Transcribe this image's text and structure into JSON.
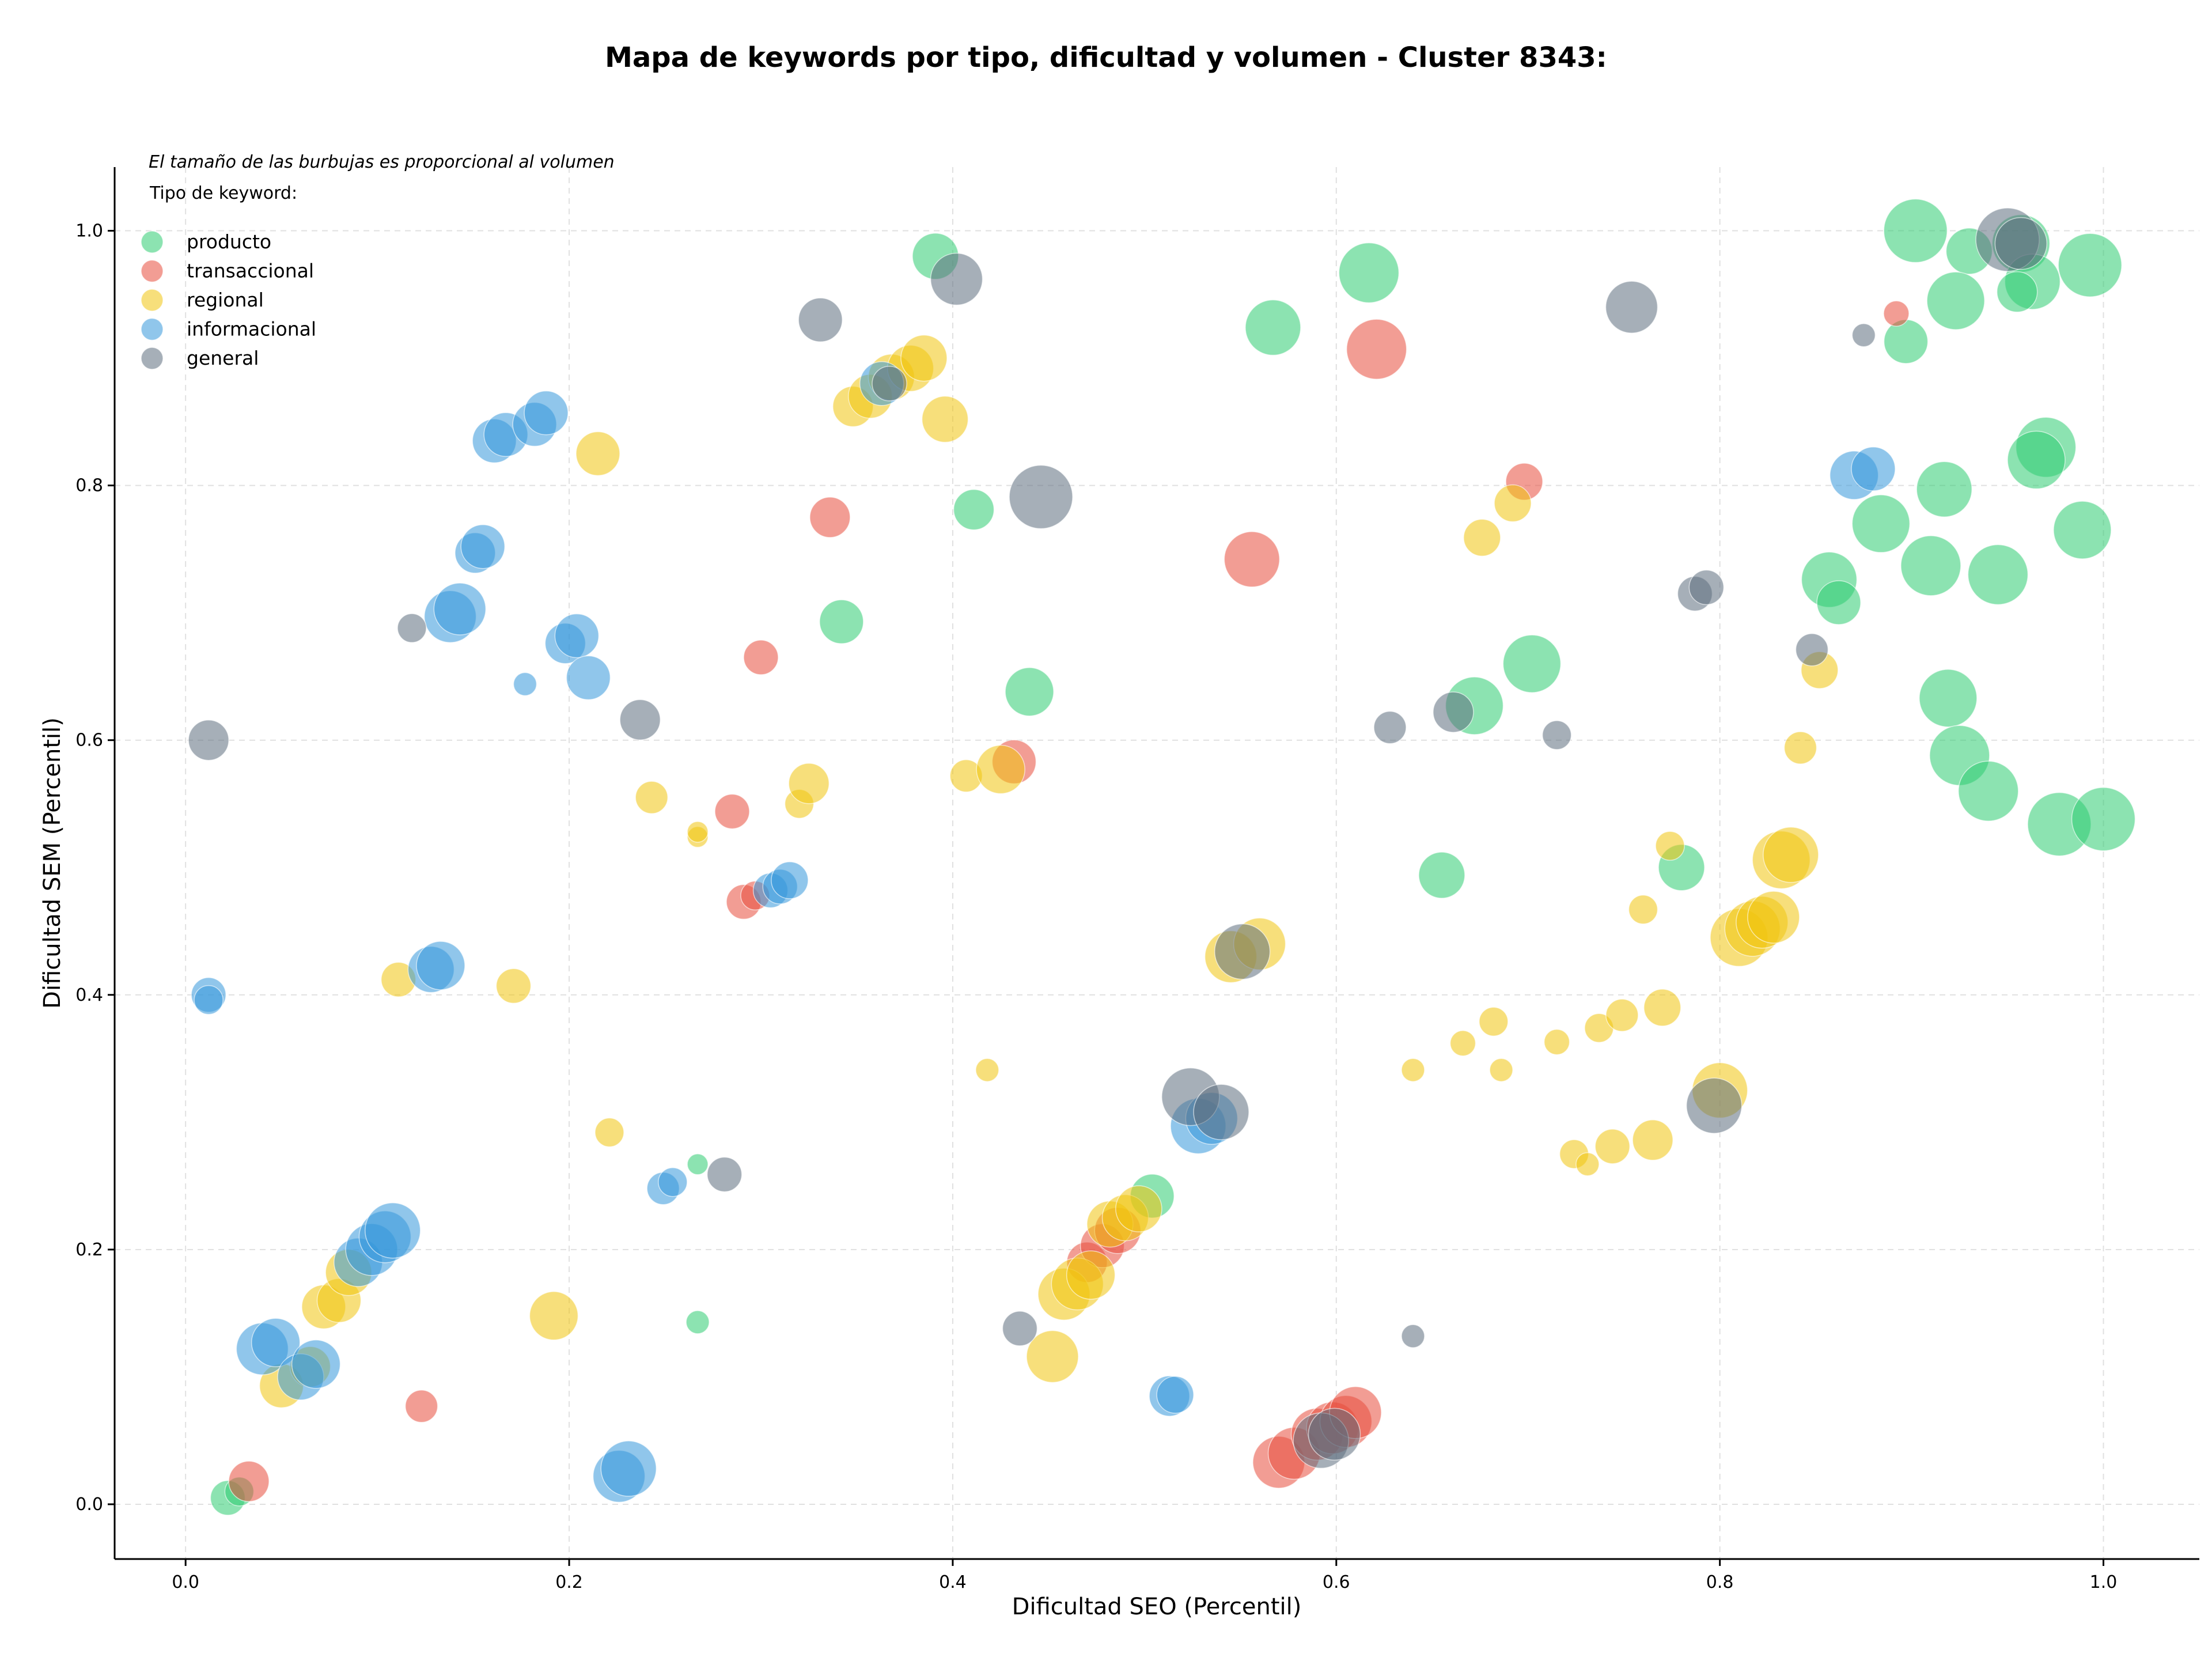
{
  "chart_data": {
    "type": "scatter",
    "title": "Mapa de keywords por tipo, dificultad y volumen - Cluster 8343:",
    "xlabel": "Dificultad SEO (Percentil)",
    "ylabel": "Dificultad SEM (Percentil)",
    "xlim": [
      -0.037,
      1.05
    ],
    "ylim": [
      -0.043,
      1.05
    ],
    "xticks": [
      "0.0",
      "0.2",
      "0.4",
      "0.6",
      "0.8",
      "1.0"
    ],
    "yticks": [
      "0.0",
      "0.2",
      "0.4",
      "0.6",
      "0.8",
      "1.0"
    ],
    "grid": true,
    "annotation": "El tamaño de las burbujas es proporcional al volumen",
    "legend_title": "Tipo de keyword:",
    "legend_position": "top-left",
    "series": [
      {
        "name": "producto",
        "color": "#2ecc71",
        "points": [
          [
            0.902,
            1.0,
            55
          ],
          [
            0.93,
            0.984,
            40
          ],
          [
            0.957,
            0.99,
            50
          ],
          [
            0.993,
            0.973,
            55
          ],
          [
            0.963,
            0.96,
            48
          ],
          [
            0.955,
            0.952,
            35
          ],
          [
            0.923,
            0.945,
            50
          ],
          [
            0.897,
            0.913,
            38
          ],
          [
            0.97,
            0.83,
            52
          ],
          [
            0.965,
            0.82,
            50
          ],
          [
            0.917,
            0.797,
            48
          ],
          [
            0.989,
            0.765,
            50
          ],
          [
            0.884,
            0.77,
            50
          ],
          [
            0.91,
            0.737,
            52
          ],
          [
            0.945,
            0.73,
            52
          ],
          [
            0.857,
            0.726,
            48
          ],
          [
            0.862,
            0.708,
            38
          ],
          [
            0.919,
            0.633,
            50
          ],
          [
            0.925,
            0.588,
            52
          ],
          [
            0.94,
            0.56,
            52
          ],
          [
            0.977,
            0.534,
            55
          ],
          [
            1.0,
            0.538,
            55
          ],
          [
            0.78,
            0.5,
            40
          ],
          [
            0.655,
            0.494,
            40
          ],
          [
            0.672,
            0.627,
            50
          ],
          [
            0.702,
            0.66,
            50
          ],
          [
            0.617,
            0.967,
            52
          ],
          [
            0.567,
            0.924,
            48
          ],
          [
            0.391,
            0.98,
            40
          ],
          [
            0.411,
            0.781,
            35
          ],
          [
            0.44,
            0.638,
            42
          ],
          [
            0.342,
            0.693,
            38
          ],
          [
            0.504,
            0.242,
            38
          ],
          [
            0.267,
            0.267,
            18
          ],
          [
            0.267,
            0.143,
            20
          ],
          [
            0.022,
            0.005,
            30
          ],
          [
            0.028,
            0.01,
            25
          ]
        ]
      },
      {
        "name": "transaccional",
        "color": "#e74c3c",
        "points": [
          [
            0.033,
            0.018,
            35
          ],
          [
            0.123,
            0.077,
            28
          ],
          [
            0.291,
            0.473,
            30
          ],
          [
            0.297,
            0.478,
            25
          ],
          [
            0.285,
            0.544,
            30
          ],
          [
            0.3,
            0.665,
            30
          ],
          [
            0.336,
            0.775,
            35
          ],
          [
            0.432,
            0.583,
            38
          ],
          [
            0.556,
            0.742,
            48
          ],
          [
            0.621,
            0.907,
            52
          ],
          [
            0.698,
            0.803,
            32
          ],
          [
            0.892,
            0.935,
            22
          ],
          [
            0.47,
            0.19,
            35
          ],
          [
            0.478,
            0.203,
            38
          ],
          [
            0.486,
            0.215,
            40
          ],
          [
            0.57,
            0.033,
            45
          ],
          [
            0.578,
            0.04,
            45
          ],
          [
            0.59,
            0.055,
            45
          ],
          [
            0.598,
            0.06,
            45
          ],
          [
            0.605,
            0.065,
            45
          ],
          [
            0.61,
            0.072,
            45
          ]
        ]
      },
      {
        "name": "regional",
        "color": "#f1c40f",
        "points": [
          [
            0.05,
            0.093,
            38
          ],
          [
            0.065,
            0.108,
            35
          ],
          [
            0.072,
            0.155,
            38
          ],
          [
            0.08,
            0.16,
            38
          ],
          [
            0.085,
            0.182,
            40
          ],
          [
            0.192,
            0.148,
            42
          ],
          [
            0.111,
            0.412,
            30
          ],
          [
            0.171,
            0.407,
            30
          ],
          [
            0.221,
            0.292,
            25
          ],
          [
            0.243,
            0.555,
            28
          ],
          [
            0.267,
            0.524,
            18
          ],
          [
            0.267,
            0.528,
            18
          ],
          [
            0.215,
            0.825,
            38
          ],
          [
            0.32,
            0.55,
            25
          ],
          [
            0.325,
            0.566,
            35
          ],
          [
            0.348,
            0.862,
            35
          ],
          [
            0.357,
            0.87,
            38
          ],
          [
            0.368,
            0.885,
            40
          ],
          [
            0.378,
            0.892,
            40
          ],
          [
            0.385,
            0.9,
            40
          ],
          [
            0.396,
            0.852,
            40
          ],
          [
            0.407,
            0.572,
            28
          ],
          [
            0.425,
            0.577,
            42
          ],
          [
            0.418,
            0.341,
            20
          ],
          [
            0.452,
            0.116,
            45
          ],
          [
            0.458,
            0.165,
            45
          ],
          [
            0.465,
            0.173,
            45
          ],
          [
            0.472,
            0.18,
            42
          ],
          [
            0.482,
            0.22,
            40
          ],
          [
            0.49,
            0.225,
            40
          ],
          [
            0.497,
            0.232,
            40
          ],
          [
            0.545,
            0.43,
            45
          ],
          [
            0.56,
            0.44,
            45
          ],
          [
            0.64,
            0.341,
            20
          ],
          [
            0.666,
            0.362,
            22
          ],
          [
            0.682,
            0.379,
            25
          ],
          [
            0.676,
            0.759,
            32
          ],
          [
            0.692,
            0.786,
            32
          ],
          [
            0.686,
            0.341,
            20
          ],
          [
            0.715,
            0.363,
            22
          ],
          [
            0.724,
            0.275,
            25
          ],
          [
            0.731,
            0.267,
            20
          ],
          [
            0.737,
            0.374,
            25
          ],
          [
            0.744,
            0.281,
            30
          ],
          [
            0.749,
            0.384,
            28
          ],
          [
            0.765,
            0.286,
            35
          ],
          [
            0.77,
            0.39,
            32
          ],
          [
            0.774,
            0.517,
            25
          ],
          [
            0.76,
            0.467,
            25
          ],
          [
            0.8,
            0.325,
            48
          ],
          [
            0.81,
            0.445,
            50
          ],
          [
            0.817,
            0.452,
            48
          ],
          [
            0.822,
            0.457,
            45
          ],
          [
            0.828,
            0.461,
            45
          ],
          [
            0.832,
            0.506,
            50
          ],
          [
            0.837,
            0.51,
            48
          ],
          [
            0.842,
            0.594,
            28
          ],
          [
            0.852,
            0.655,
            32
          ]
        ]
      },
      {
        "name": "informacional",
        "color": "#3498db",
        "points": [
          [
            0.012,
            0.4,
            30
          ],
          [
            0.012,
            0.396,
            25
          ],
          [
            0.04,
            0.122,
            45
          ],
          [
            0.047,
            0.127,
            42
          ],
          [
            0.06,
            0.1,
            40
          ],
          [
            0.068,
            0.11,
            42
          ],
          [
            0.09,
            0.19,
            42
          ],
          [
            0.097,
            0.2,
            45
          ],
          [
            0.104,
            0.21,
            45
          ],
          [
            0.108,
            0.215,
            48
          ],
          [
            0.128,
            0.42,
            40
          ],
          [
            0.133,
            0.423,
            42
          ],
          [
            0.138,
            0.697,
            45
          ],
          [
            0.143,
            0.703,
            45
          ],
          [
            0.151,
            0.747,
            35
          ],
          [
            0.155,
            0.752,
            38
          ],
          [
            0.161,
            0.835,
            38
          ],
          [
            0.167,
            0.84,
            38
          ],
          [
            0.182,
            0.848,
            38
          ],
          [
            0.188,
            0.857,
            38
          ],
          [
            0.177,
            0.644,
            20
          ],
          [
            0.198,
            0.676,
            35
          ],
          [
            0.204,
            0.682,
            38
          ],
          [
            0.21,
            0.649,
            38
          ],
          [
            0.226,
            0.022,
            45
          ],
          [
            0.231,
            0.028,
            48
          ],
          [
            0.249,
            0.248,
            28
          ],
          [
            0.254,
            0.253,
            25
          ],
          [
            0.305,
            0.482,
            30
          ],
          [
            0.31,
            0.485,
            30
          ],
          [
            0.315,
            0.49,
            32
          ],
          [
            0.363,
            0.88,
            38
          ],
          [
            0.513,
            0.085,
            35
          ],
          [
            0.516,
            0.086,
            32
          ],
          [
            0.528,
            0.297,
            48
          ],
          [
            0.535,
            0.303,
            45
          ],
          [
            0.87,
            0.808,
            42
          ],
          [
            0.88,
            0.813,
            38
          ]
        ]
      },
      {
        "name": "general",
        "color": "#5d6d7e",
        "points": [
          [
            0.012,
            0.6,
            35
          ],
          [
            0.118,
            0.688,
            25
          ],
          [
            0.237,
            0.616,
            35
          ],
          [
            0.281,
            0.259,
            30
          ],
          [
            0.331,
            0.93,
            38
          ],
          [
            0.402,
            0.962,
            45
          ],
          [
            0.446,
            0.791,
            55
          ],
          [
            0.435,
            0.138,
            30
          ],
          [
            0.367,
            0.88,
            30
          ],
          [
            0.524,
            0.32,
            50
          ],
          [
            0.54,
            0.308,
            48
          ],
          [
            0.551,
            0.434,
            48
          ],
          [
            0.592,
            0.05,
            48
          ],
          [
            0.599,
            0.055,
            45
          ],
          [
            0.628,
            0.61,
            28
          ],
          [
            0.64,
            0.132,
            20
          ],
          [
            0.661,
            0.622,
            35
          ],
          [
            0.715,
            0.604,
            25
          ],
          [
            0.754,
            0.94,
            45
          ],
          [
            0.787,
            0.715,
            30
          ],
          [
            0.793,
            0.72,
            30
          ],
          [
            0.797,
            0.313,
            48
          ],
          [
            0.848,
            0.671,
            28
          ],
          [
            0.875,
            0.918,
            20
          ],
          [
            0.95,
            0.993,
            55
          ],
          [
            0.957,
            0.99,
            45
          ]
        ]
      }
    ]
  }
}
